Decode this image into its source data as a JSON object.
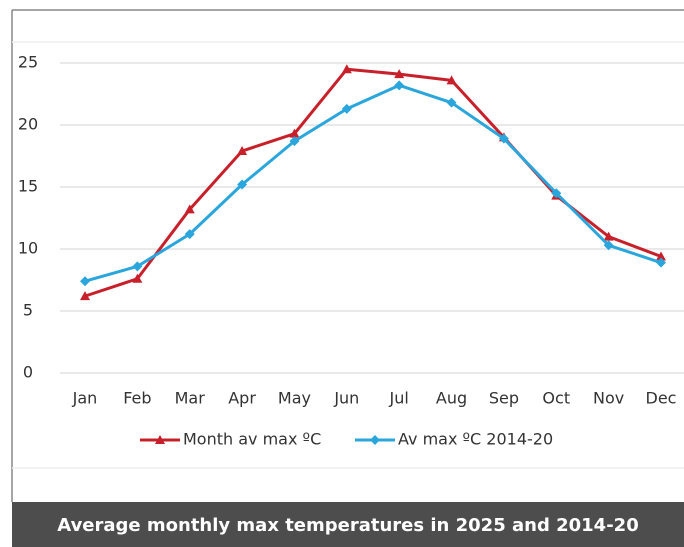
{
  "chart_data": {
    "type": "line",
    "caption": "Average monthly max temperatures in 2025 and 2014-20",
    "categories": [
      "Jan",
      "Feb",
      "Mar",
      "Apr",
      "May",
      "Jun",
      "Jul",
      "Aug",
      "Sep",
      "Oct",
      "Nov",
      "Dec"
    ],
    "series": [
      {
        "name": "Month av max ºC",
        "color": "#c8202a",
        "marker": "triangle",
        "values": [
          6.2,
          7.6,
          13.2,
          17.9,
          19.3,
          24.5,
          24.1,
          23.6,
          19.0,
          14.3,
          11.0,
          9.4
        ]
      },
      {
        "name": "Av max ºC 2014-20",
        "color": "#2aa6dc",
        "marker": "diamond",
        "values": [
          7.4,
          8.6,
          11.2,
          15.2,
          18.7,
          21.3,
          23.2,
          21.8,
          18.9,
          14.5,
          10.3,
          8.9
        ]
      }
    ],
    "ylim": [
      0,
      25
    ],
    "yticks": [
      0,
      5,
      10,
      15,
      20,
      25
    ],
    "grid": true,
    "legend": "bottom"
  }
}
